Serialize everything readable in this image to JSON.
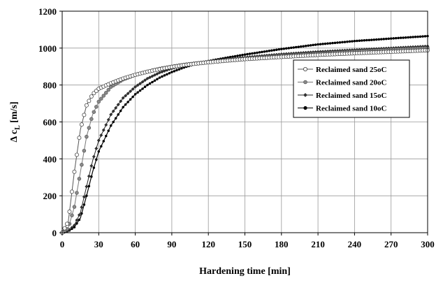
{
  "chart_data": {
    "type": "line",
    "title": "",
    "xlabel": "Hardening time [min]",
    "ylabel_prefix": "Δ c",
    "ylabel_sub": "L",
    "ylabel_suffix": " [m/s]",
    "xlim": [
      0,
      300
    ],
    "ylim": [
      0,
      1200
    ],
    "xticks": [
      0,
      30,
      60,
      90,
      120,
      150,
      180,
      210,
      240,
      270,
      300
    ],
    "yticks": [
      0,
      200,
      400,
      600,
      800,
      1000,
      1200
    ],
    "grid": true,
    "legend_position": "right-middle",
    "x": [
      0,
      5,
      10,
      15,
      20,
      25,
      30,
      40,
      50,
      60,
      70,
      80,
      90,
      100,
      110,
      120,
      135,
      150,
      180,
      210,
      240,
      270,
      300
    ],
    "series": [
      {
        "name": "Reclaimed sand  25oC",
        "marker": "open-circle",
        "values": [
          0,
          60,
          330,
          560,
          690,
          750,
          780,
          810,
          835,
          855,
          872,
          886,
          898,
          908,
          916,
          923,
          932,
          940,
          952,
          963,
          972,
          980,
          988
        ]
      },
      {
        "name": "Reclaimed sand  20oC",
        "marker": "gray-circle",
        "values": [
          0,
          25,
          140,
          330,
          520,
          640,
          710,
          790,
          830,
          855,
          873,
          888,
          900,
          910,
          918,
          925,
          935,
          944,
          958,
          970,
          981,
          991,
          1000
        ]
      },
      {
        "name": "Reclaimed sand  15oC",
        "marker": "dark-diamond",
        "values": [
          0,
          10,
          40,
          110,
          250,
          390,
          500,
          640,
          730,
          790,
          835,
          867,
          890,
          906,
          918,
          928,
          940,
          950,
          967,
          980,
          990,
          1000,
          1010
        ]
      },
      {
        "name": "Reclaimed sand  10oC",
        "marker": "small-dot",
        "values": [
          0,
          8,
          30,
          80,
          200,
          330,
          440,
          580,
          680,
          750,
          800,
          840,
          870,
          895,
          915,
          930,
          948,
          965,
          995,
          1020,
          1038,
          1052,
          1065
        ]
      }
    ]
  }
}
